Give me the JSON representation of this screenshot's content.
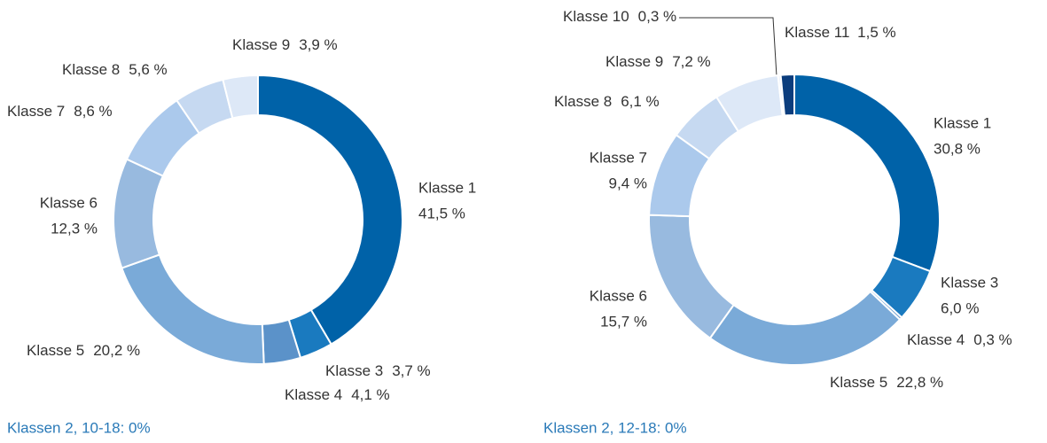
{
  "chart_data": [
    {
      "type": "pie",
      "donut": true,
      "categories": [
        "Klasse 1",
        "Klasse 3",
        "Klasse 4",
        "Klasse 5",
        "Klasse 6",
        "Klasse 7",
        "Klasse 8",
        "Klasse 9"
      ],
      "values": [
        41.5,
        3.7,
        4.1,
        20.2,
        12.3,
        8.6,
        5.6,
        3.9
      ],
      "value_labels": [
        "41,5 %",
        "3,7 %",
        "4,1 %",
        "20,2 %",
        "12,3 %",
        "8,6 %",
        "5,6 %",
        "3,9 %"
      ],
      "colors": [
        "#0062a8",
        "#1a7abf",
        "#5b92c9",
        "#7aaad8",
        "#98badf",
        "#abc9ec",
        "#c6d9f1",
        "#dde8f7"
      ],
      "note": "Klassen 2, 10-18: 0%"
    },
    {
      "type": "pie",
      "donut": true,
      "categories": [
        "Klasse 1",
        "Klasse 3",
        "Klasse 4",
        "Klasse 5",
        "Klasse 6",
        "Klasse 7",
        "Klasse 8",
        "Klasse 9",
        "Klasse 10",
        "Klasse 11"
      ],
      "values": [
        30.8,
        6.0,
        0.3,
        22.8,
        15.7,
        9.4,
        6.1,
        7.2,
        0.3,
        1.5
      ],
      "value_labels": [
        "30,8 %",
        "6,0 %",
        "0,3 %",
        "22,8 %",
        "15,7 %",
        "9,4 %",
        "6,1 %",
        "7,2 %",
        "0,3 %",
        "1,5 %"
      ],
      "colors": [
        "#0062a8",
        "#1a7abf",
        "#5b92c9",
        "#7aaad8",
        "#98badf",
        "#abc9ec",
        "#c6d9f1",
        "#dde8f7",
        "#eef3fb",
        "#0b3d7d"
      ],
      "note": "Klassen 2, 12-18: 0%"
    }
  ]
}
